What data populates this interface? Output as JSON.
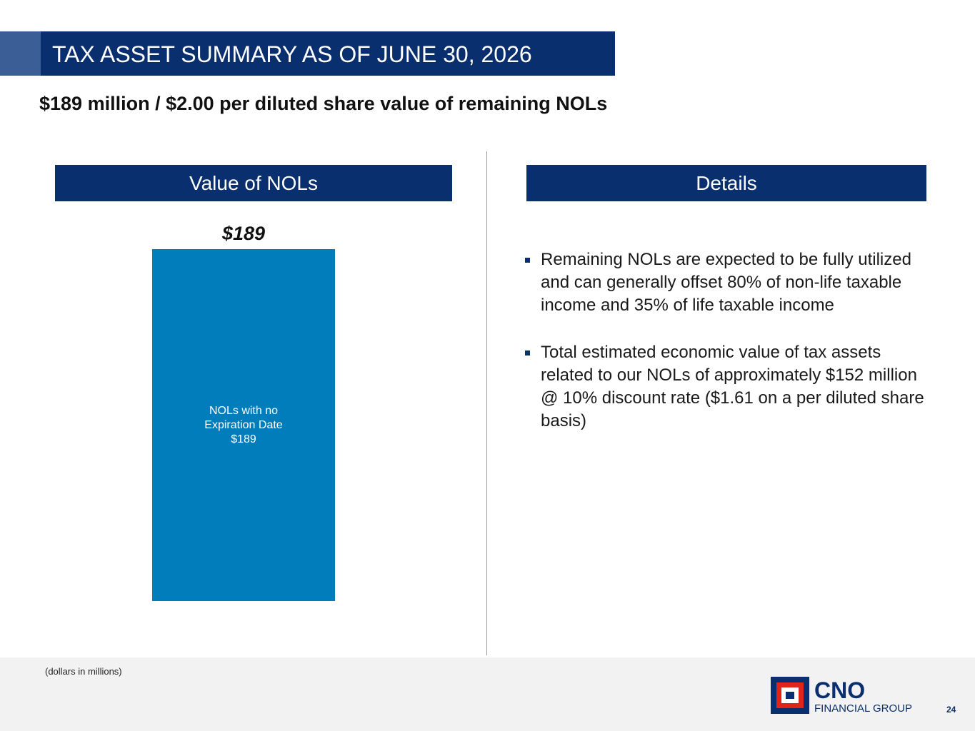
{
  "header": {
    "title": "TAX ASSET SUMMARY AS OF JUNE 30, 2026"
  },
  "subtitle": "$189 million / $2.00 per diluted share value of remaining NOLs",
  "left_panel": {
    "heading": "Value of NOLs"
  },
  "right_panel": {
    "heading": "Details",
    "bullets": [
      "Remaining NOLs are expected to be fully utilized and can generally offset 80% of non-life taxable income and 35% of life taxable income",
      "Total estimated economic value of tax assets related to our NOLs of approximately $152 million @ 10% discount rate ($1.61 on a per diluted share basis)"
    ]
  },
  "chart_data": {
    "type": "bar",
    "total_label": "$189",
    "categories": [
      "NOLs with no Expiration Date"
    ],
    "values": [
      189
    ],
    "value_labels": [
      "$189"
    ],
    "color": "#007dba"
  },
  "footer": {
    "note": "(dollars in millions)",
    "logo_main": "CNO",
    "logo_sub": "FINANCIAL GROUP",
    "page_number": "24"
  }
}
